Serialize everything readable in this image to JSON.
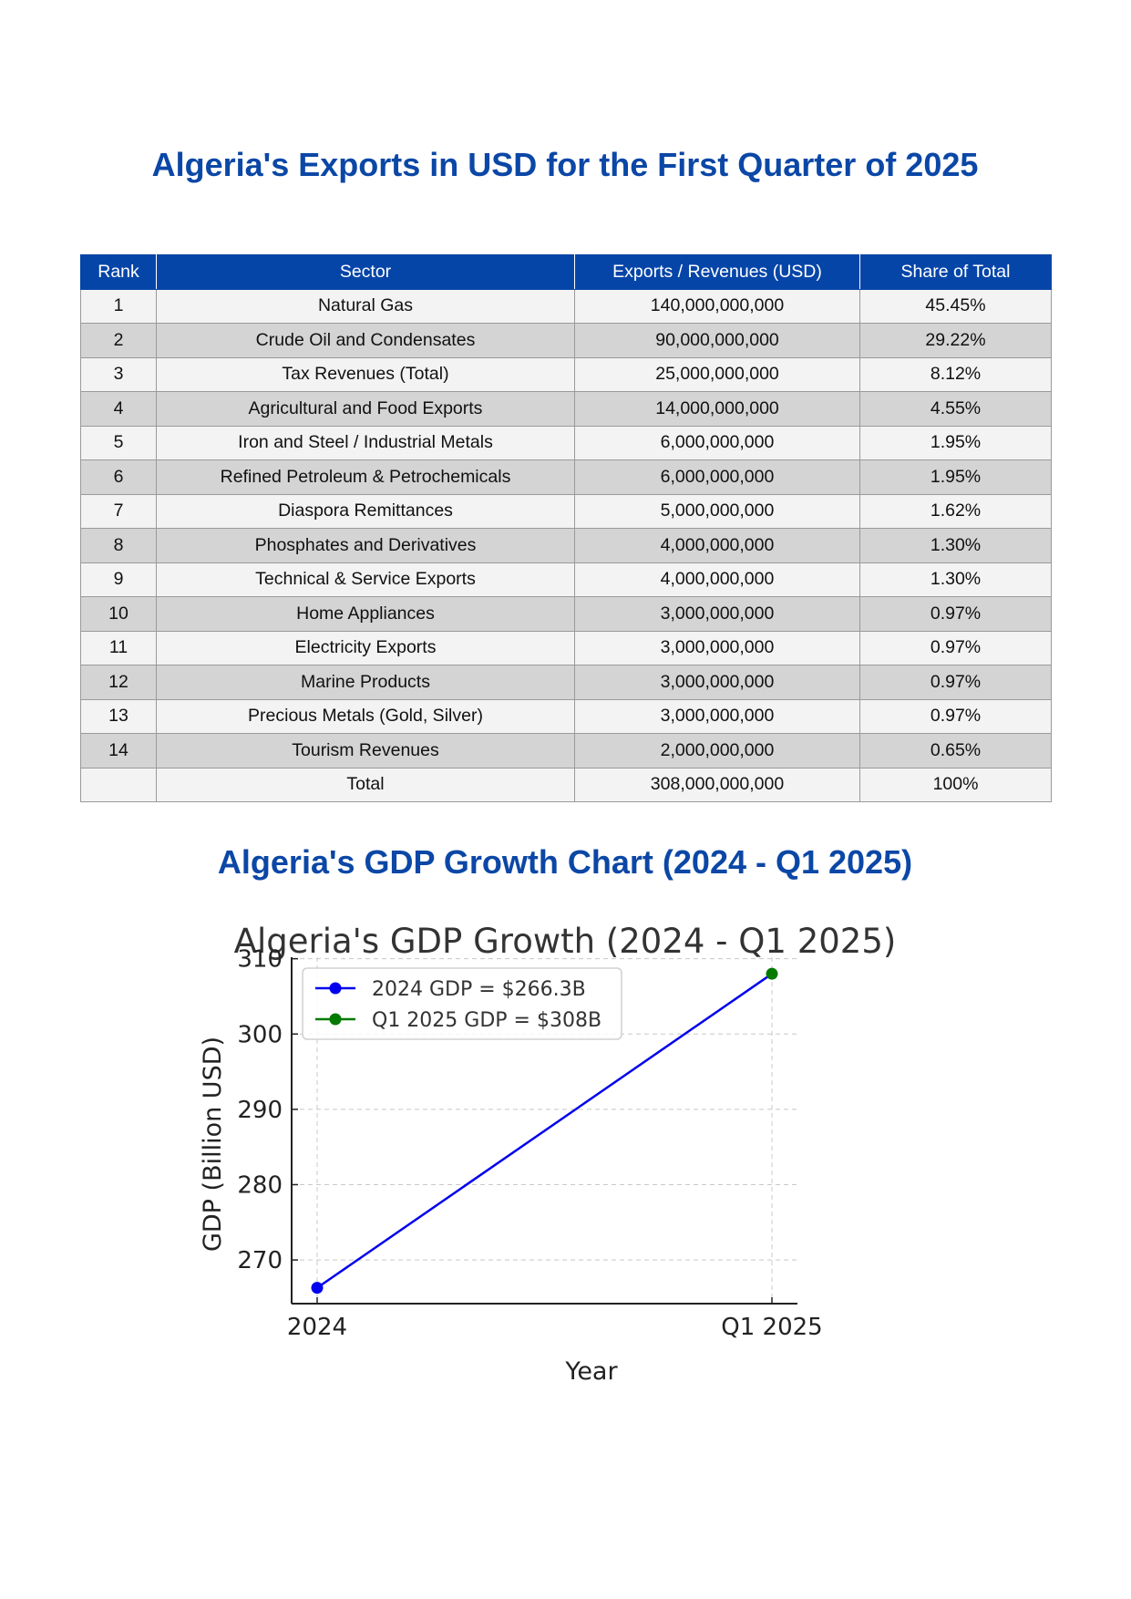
{
  "document": {
    "title": "Algeria's Exports in USD for the First Quarter of 2025"
  },
  "exports_table": {
    "headers": [
      "Rank",
      "Sector",
      "Exports / Revenues (USD)",
      "Share of Total"
    ],
    "rows": [
      [
        "1",
        "Natural Gas",
        "140,000,000,000",
        "45.45%"
      ],
      [
        "2",
        "Crude Oil and Condensates",
        "90,000,000,000",
        "29.22%"
      ],
      [
        "3",
        "Tax Revenues (Total)",
        "25,000,000,000",
        "8.12%"
      ],
      [
        "4",
        "Agricultural and Food Exports",
        "14,000,000,000",
        "4.55%"
      ],
      [
        "5",
        "Iron and Steel / Industrial Metals",
        "6,000,000,000",
        "1.95%"
      ],
      [
        "6",
        "Refined Petroleum & Petrochemicals",
        "6,000,000,000",
        "1.95%"
      ],
      [
        "7",
        "Diaspora Remittances",
        "5,000,000,000",
        "1.62%"
      ],
      [
        "8",
        "Phosphates and Derivatives",
        "4,000,000,000",
        "1.30%"
      ],
      [
        "9",
        "Technical & Service Exports",
        "4,000,000,000",
        "1.30%"
      ],
      [
        "10",
        "Home Appliances",
        "3,000,000,000",
        "0.97%"
      ],
      [
        "11",
        "Electricity Exports",
        "3,000,000,000",
        "0.97%"
      ],
      [
        "12",
        "Marine Products",
        "3,000,000,000",
        "0.97%"
      ],
      [
        "13",
        "Precious Metals (Gold, Silver)",
        "3,000,000,000",
        "0.97%"
      ],
      [
        "14",
        "Tourism Revenues",
        "2,000,000,000",
        "0.65%"
      ],
      [
        "",
        "Total",
        "308,000,000,000",
        "100%"
      ]
    ]
  },
  "chart_section": {
    "heading": "Algeria's GDP Growth Chart (2024 - Q1 2025)"
  },
  "chart_data": {
    "type": "line",
    "title": "Algeria's GDP Growth (2024 - Q1 2025)",
    "xlabel": "Year",
    "ylabel": "GDP (Billion USD)",
    "categories": [
      "2024",
      "Q1 2025"
    ],
    "yticks": [
      270,
      280,
      290,
      300,
      310
    ],
    "ylim": [
      264.2,
      310.2
    ],
    "grid": true,
    "legend_position": "top-left",
    "points": [
      {
        "x": "2024",
        "y": 266.3,
        "color": "#0000ee",
        "legend": "2024 GDP = $266.3B"
      },
      {
        "x": "Q1 2025",
        "y": 308,
        "color": "#007a00",
        "legend": "Q1 2025 GDP = $308B"
      }
    ],
    "line_color": "#0000ee"
  }
}
